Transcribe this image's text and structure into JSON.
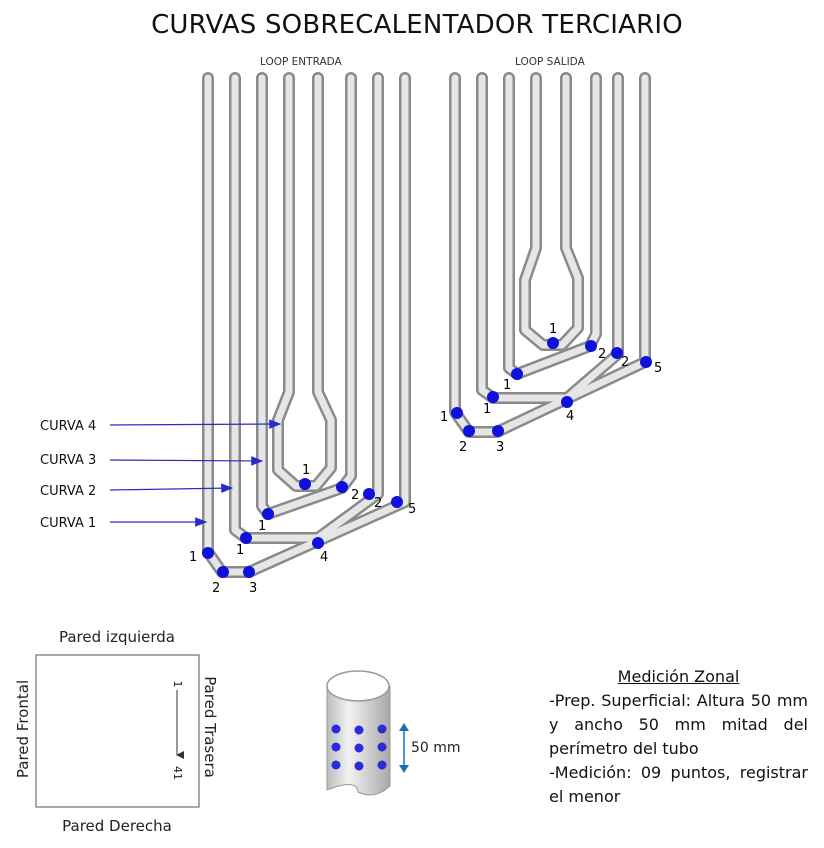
{
  "title": "CURVAS SOBRECALENTADOR TERCIARIO",
  "loops": [
    {
      "label": "LOOP ENTRADA"
    },
    {
      "label": "LOOP SALIDA"
    }
  ],
  "curves": [
    "CURVA 4",
    "CURVA 3",
    "CURVA 2",
    "CURVA 1"
  ],
  "point_labels": {
    "entrada": [
      "1",
      "2",
      "2",
      "1",
      "1",
      "1",
      "2",
      "3",
      "4",
      "5"
    ],
    "salida": [
      "1",
      "2",
      "2",
      "1",
      "1",
      "1",
      "2",
      "3",
      "4",
      "5"
    ]
  },
  "plan": {
    "top": "Pared izquierda",
    "bottom": "Pared Derecha",
    "left": "Pared Frontal",
    "right": "Pared Trasera",
    "start": "1",
    "end": "41"
  },
  "tube_dimension": "50 mm",
  "zonal": {
    "title": "Medición Zonal",
    "line1": "-Prep. Superficial: Altura 50 mm y ancho 50 mm mitad del perímetro del tubo",
    "line2": "-Medición: 09 puntos, registrar el menor"
  },
  "colors": {
    "point": "#1010dd",
    "arrow": "#2a2acc",
    "tube_fill": "#d4d4d4",
    "tube_edge": "#8a8a8a",
    "dim_arrow": "#1a6fb5"
  }
}
